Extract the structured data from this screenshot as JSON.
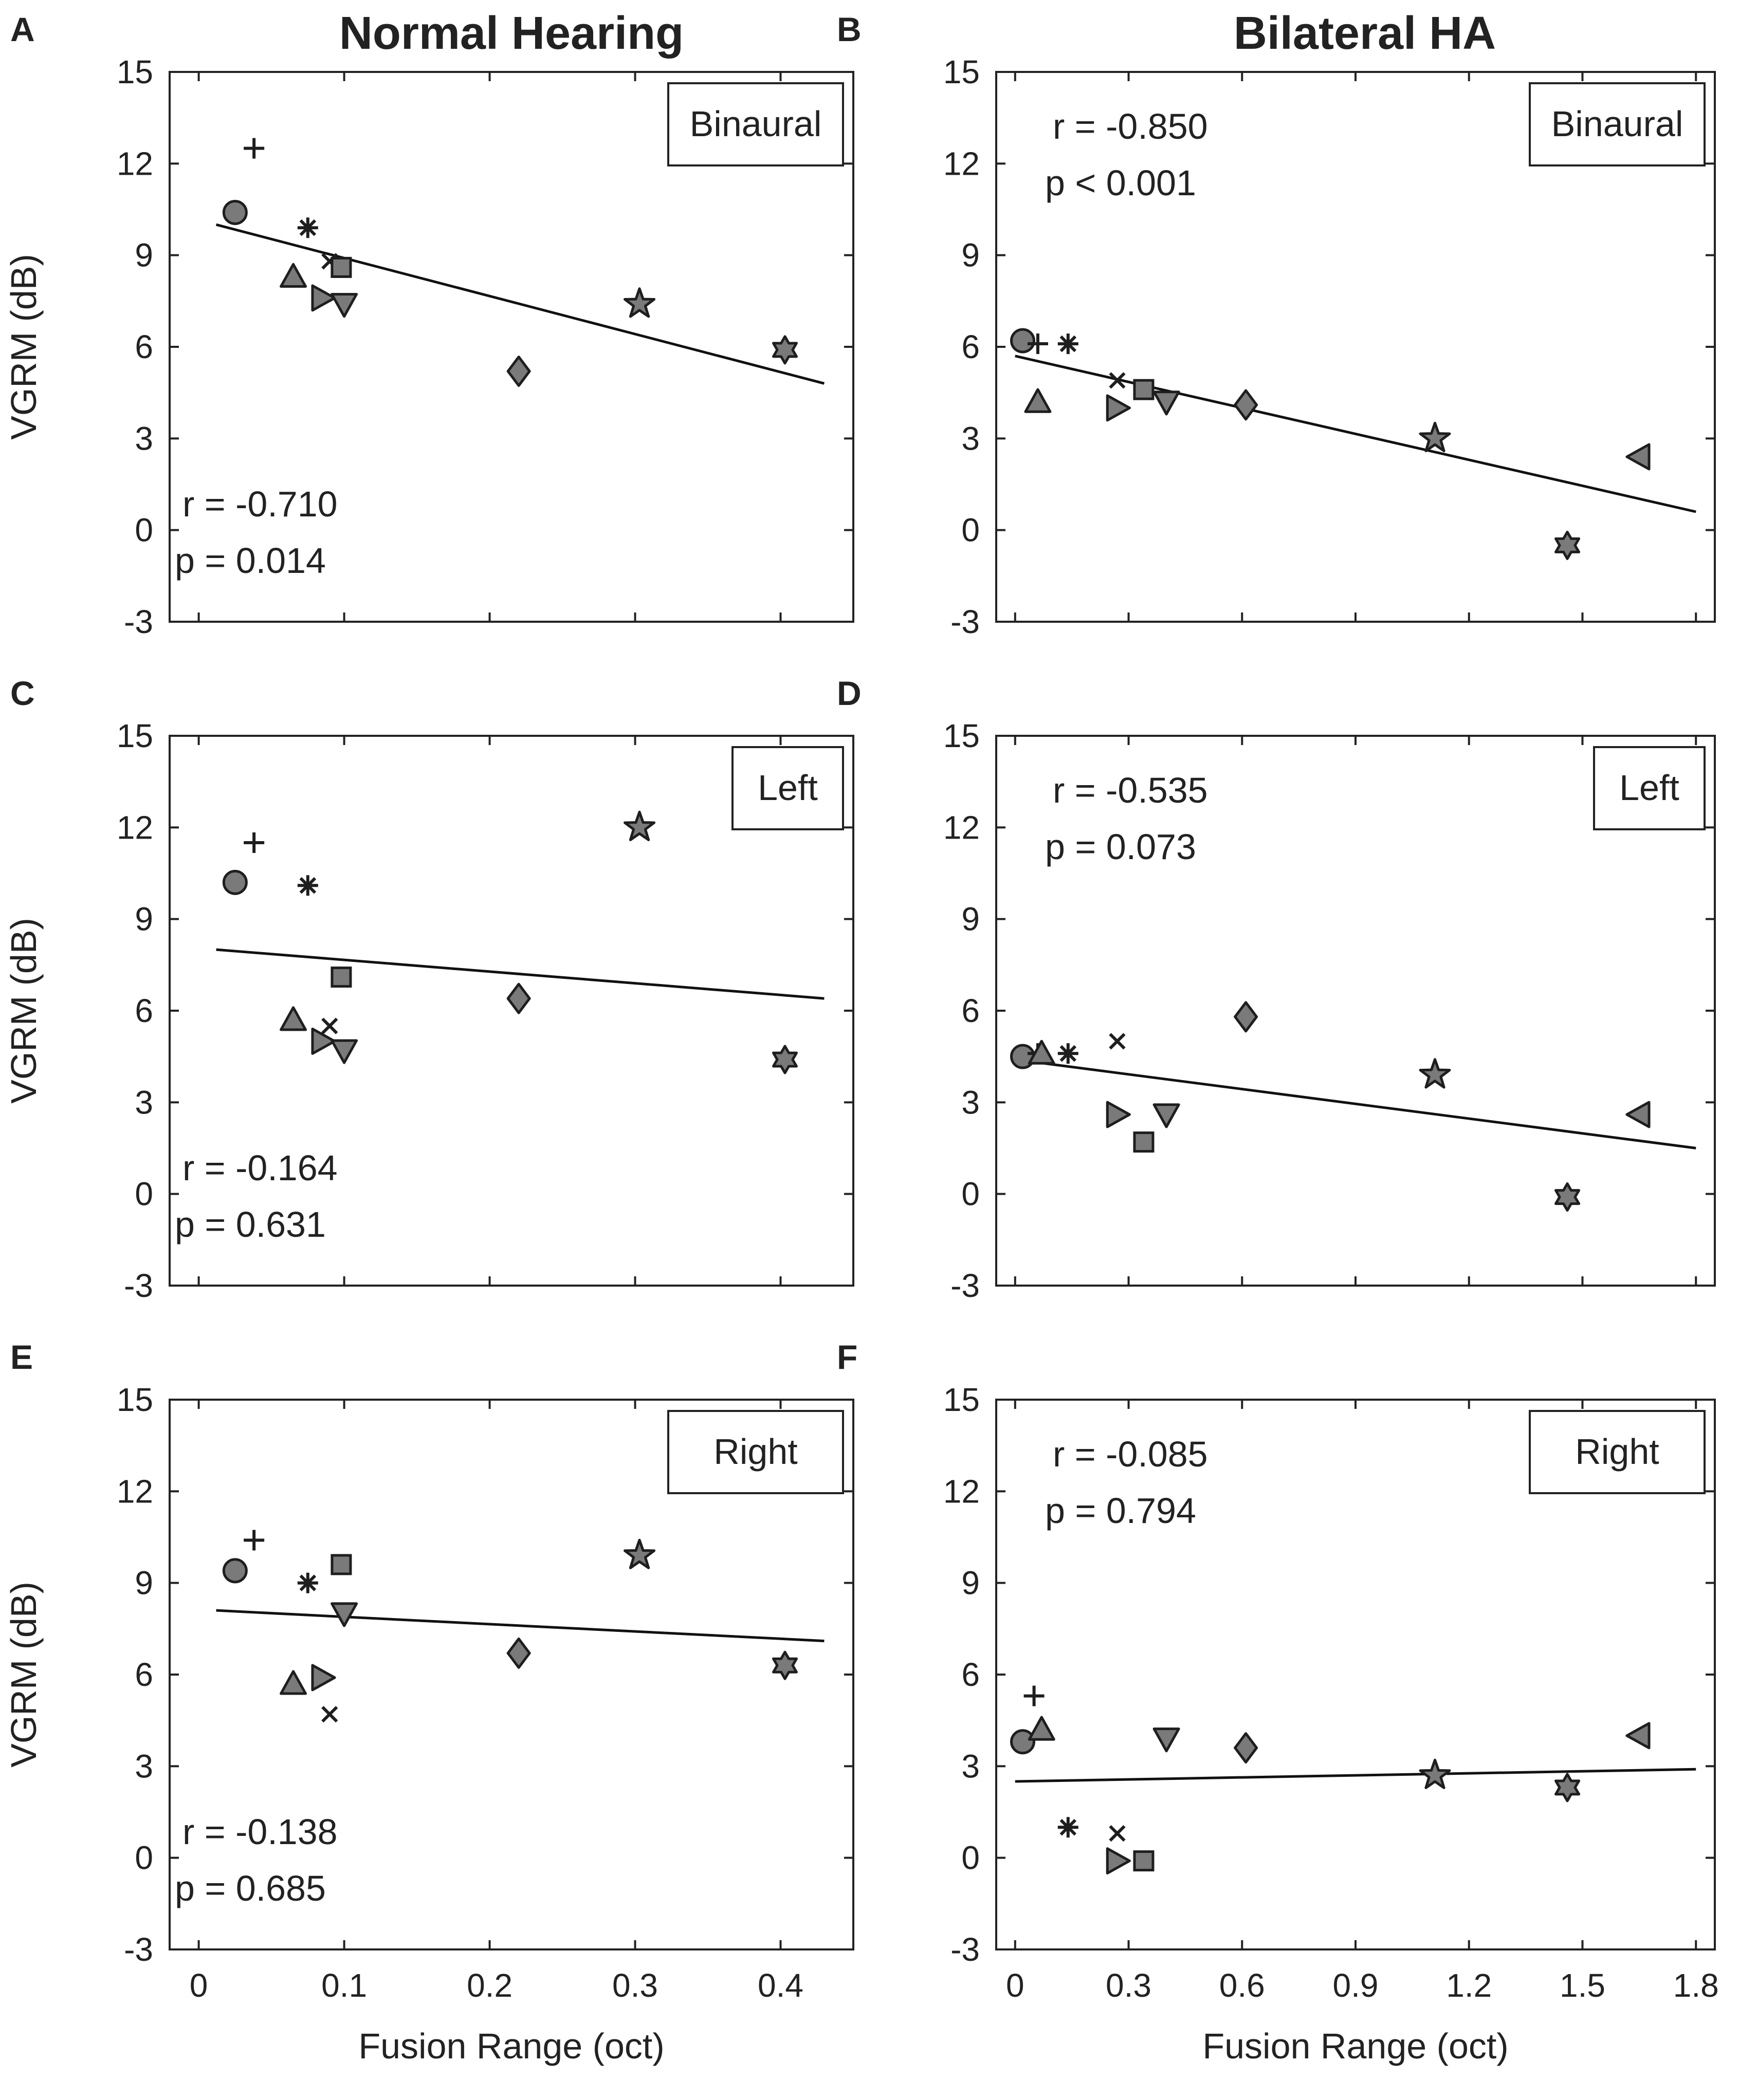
{
  "columns": [
    "Normal Hearing",
    "Bilateral HA"
  ],
  "ylabel": "VGRM (dB)",
  "xlabel": "Fusion Range (oct)",
  "colors": {
    "marker_fill": "#7a7a7a",
    "marker_stroke": "#1e1e1e",
    "line": "#111111",
    "text": "#222222"
  },
  "chart_data": [
    {
      "type": "scatter",
      "panel": "A",
      "group": "Normal Hearing",
      "condition": "Binaural",
      "xlabel": "Fusion Range (oct)",
      "ylabel": "VGRM (dB)",
      "xlim": [
        -0.02,
        0.45
      ],
      "ylim": [
        -3,
        15
      ],
      "xticks": [
        "0",
        "0.1",
        "0.2",
        "0.3",
        "0.4"
      ],
      "yticks": [
        "15",
        "12",
        "9",
        "6",
        "3",
        "0",
        "-3"
      ],
      "stats": {
        "r": "r = -0.710",
        "p": "p =  0.014"
      },
      "stats_position": "bottom-left",
      "fit": [
        [
          0.012,
          10.0
        ],
        [
          0.43,
          4.8
        ]
      ],
      "points": [
        {
          "marker": "circle",
          "x": 0.025,
          "y": 10.4
        },
        {
          "marker": "plus",
          "x": 0.038,
          "y": 12.5
        },
        {
          "marker": "asterisk",
          "x": 0.075,
          "y": 9.9
        },
        {
          "marker": "triangle-up",
          "x": 0.065,
          "y": 8.3
        },
        {
          "marker": "x",
          "x": 0.09,
          "y": 8.8
        },
        {
          "marker": "square",
          "x": 0.098,
          "y": 8.6
        },
        {
          "marker": "triangle-right",
          "x": 0.085,
          "y": 7.6
        },
        {
          "marker": "triangle-down",
          "x": 0.1,
          "y": 7.4
        },
        {
          "marker": "diamond",
          "x": 0.22,
          "y": 5.2
        },
        {
          "marker": "pentagram",
          "x": 0.303,
          "y": 7.4
        },
        {
          "marker": "hexagram",
          "x": 0.403,
          "y": 5.9
        }
      ]
    },
    {
      "type": "scatter",
      "panel": "B",
      "group": "Bilateral HA",
      "condition": "Binaural",
      "xlabel": "Fusion Range (oct)",
      "ylabel": "VGRM (dB)",
      "xlim": [
        -0.05,
        1.85
      ],
      "ylim": [
        -3,
        15
      ],
      "xticks": [
        "0",
        "0.3",
        "0.6",
        "0.9",
        "1.2",
        "1.5",
        "1.8"
      ],
      "yticks": [
        "15",
        "12",
        "9",
        "6",
        "3",
        "0",
        "-3"
      ],
      "stats": {
        "r": "r = -0.850",
        "p": "p <  0.001"
      },
      "stats_position": "top-left",
      "fit": [
        [
          0.0,
          5.7
        ],
        [
          1.8,
          0.6
        ]
      ],
      "points": [
        {
          "marker": "circle",
          "x": 0.02,
          "y": 6.2
        },
        {
          "marker": "plus",
          "x": 0.06,
          "y": 6.1
        },
        {
          "marker": "asterisk",
          "x": 0.14,
          "y": 6.1
        },
        {
          "marker": "triangle-up",
          "x": 0.06,
          "y": 4.2
        },
        {
          "marker": "x",
          "x": 0.27,
          "y": 4.9
        },
        {
          "marker": "square",
          "x": 0.34,
          "y": 4.6
        },
        {
          "marker": "triangle-right",
          "x": 0.27,
          "y": 4.0
        },
        {
          "marker": "triangle-down",
          "x": 0.4,
          "y": 4.2
        },
        {
          "marker": "diamond",
          "x": 0.61,
          "y": 4.1
        },
        {
          "marker": "pentagram",
          "x": 1.11,
          "y": 3.0
        },
        {
          "marker": "hexagram",
          "x": 1.46,
          "y": -0.5
        },
        {
          "marker": "triangle-left",
          "x": 1.65,
          "y": 2.4
        }
      ]
    },
    {
      "type": "scatter",
      "panel": "C",
      "group": "Normal Hearing",
      "condition": "Left",
      "xlabel": "Fusion Range (oct)",
      "ylabel": "VGRM (dB)",
      "xlim": [
        -0.02,
        0.45
      ],
      "ylim": [
        -3,
        15
      ],
      "xticks": [
        "0",
        "0.1",
        "0.2",
        "0.3",
        "0.4"
      ],
      "yticks": [
        "15",
        "12",
        "9",
        "6",
        "3",
        "0",
        "-3"
      ],
      "stats": {
        "r": "r = -0.164",
        "p": "p =  0.631"
      },
      "stats_position": "bottom-left",
      "fit": [
        [
          0.012,
          8.0
        ],
        [
          0.43,
          6.4
        ]
      ],
      "points": [
        {
          "marker": "circle",
          "x": 0.025,
          "y": 10.2
        },
        {
          "marker": "plus",
          "x": 0.038,
          "y": 11.5
        },
        {
          "marker": "asterisk",
          "x": 0.075,
          "y": 10.1
        },
        {
          "marker": "triangle-up",
          "x": 0.065,
          "y": 5.7
        },
        {
          "marker": "x",
          "x": 0.09,
          "y": 5.5
        },
        {
          "marker": "square",
          "x": 0.098,
          "y": 7.1
        },
        {
          "marker": "triangle-right",
          "x": 0.085,
          "y": 5.0
        },
        {
          "marker": "triangle-down",
          "x": 0.1,
          "y": 4.7
        },
        {
          "marker": "diamond",
          "x": 0.22,
          "y": 6.4
        },
        {
          "marker": "pentagram",
          "x": 0.303,
          "y": 12.0
        },
        {
          "marker": "hexagram",
          "x": 0.403,
          "y": 4.4
        }
      ]
    },
    {
      "type": "scatter",
      "panel": "D",
      "group": "Bilateral HA",
      "condition": "Left",
      "xlabel": "Fusion Range (oct)",
      "ylabel": "VGRM (dB)",
      "xlim": [
        -0.05,
        1.85
      ],
      "ylim": [
        -3,
        15
      ],
      "xticks": [
        "0",
        "0.3",
        "0.6",
        "0.9",
        "1.2",
        "1.5",
        "1.8"
      ],
      "yticks": [
        "15",
        "12",
        "9",
        "6",
        "3",
        "0",
        "-3"
      ],
      "stats": {
        "r": "r = -0.535",
        "p": "p =  0.073"
      },
      "stats_position": "top-left",
      "fit": [
        [
          0.0,
          4.4
        ],
        [
          1.8,
          1.5
        ]
      ],
      "points": [
        {
          "marker": "circle",
          "x": 0.02,
          "y": 4.5
        },
        {
          "marker": "plus",
          "x": 0.06,
          "y": 4.6
        },
        {
          "marker": "asterisk",
          "x": 0.14,
          "y": 4.6
        },
        {
          "marker": "triangle-up",
          "x": 0.07,
          "y": 4.6
        },
        {
          "marker": "x",
          "x": 0.27,
          "y": 5.0
        },
        {
          "marker": "square",
          "x": 0.34,
          "y": 1.7
        },
        {
          "marker": "triangle-right",
          "x": 0.27,
          "y": 2.6
        },
        {
          "marker": "triangle-down",
          "x": 0.4,
          "y": 2.6
        },
        {
          "marker": "diamond",
          "x": 0.61,
          "y": 5.8
        },
        {
          "marker": "pentagram",
          "x": 1.11,
          "y": 3.9
        },
        {
          "marker": "hexagram",
          "x": 1.46,
          "y": -0.1
        },
        {
          "marker": "triangle-left",
          "x": 1.65,
          "y": 2.6
        }
      ]
    },
    {
      "type": "scatter",
      "panel": "E",
      "group": "Normal Hearing",
      "condition": "Right",
      "xlabel": "Fusion Range (oct)",
      "ylabel": "VGRM (dB)",
      "xlim": [
        -0.02,
        0.45
      ],
      "ylim": [
        -3,
        15
      ],
      "xticks": [
        "0",
        "0.1",
        "0.2",
        "0.3",
        "0.4"
      ],
      "yticks": [
        "15",
        "12",
        "9",
        "6",
        "3",
        "0",
        "-3"
      ],
      "stats": {
        "r": "r = -0.138",
        "p": "p =  0.685"
      },
      "stats_position": "bottom-left",
      "fit": [
        [
          0.012,
          8.1
        ],
        [
          0.43,
          7.1
        ]
      ],
      "points": [
        {
          "marker": "circle",
          "x": 0.025,
          "y": 9.4
        },
        {
          "marker": "plus",
          "x": 0.038,
          "y": 10.4
        },
        {
          "marker": "asterisk",
          "x": 0.075,
          "y": 9.0
        },
        {
          "marker": "triangle-up",
          "x": 0.065,
          "y": 5.7
        },
        {
          "marker": "x",
          "x": 0.09,
          "y": 4.7
        },
        {
          "marker": "square",
          "x": 0.098,
          "y": 9.6
        },
        {
          "marker": "triangle-right",
          "x": 0.085,
          "y": 5.9
        },
        {
          "marker": "triangle-down",
          "x": 0.1,
          "y": 8.0
        },
        {
          "marker": "diamond",
          "x": 0.22,
          "y": 6.7
        },
        {
          "marker": "pentagram",
          "x": 0.303,
          "y": 9.9
        },
        {
          "marker": "hexagram",
          "x": 0.403,
          "y": 6.3
        }
      ]
    },
    {
      "type": "scatter",
      "panel": "F",
      "group": "Bilateral HA",
      "condition": "Right",
      "xlabel": "Fusion Range (oct)",
      "ylabel": "VGRM (dB)",
      "xlim": [
        -0.05,
        1.85
      ],
      "ylim": [
        -3,
        15
      ],
      "xticks": [
        "0",
        "0.3",
        "0.6",
        "0.9",
        "1.2",
        "1.5",
        "1.8"
      ],
      "yticks": [
        "15",
        "12",
        "9",
        "6",
        "3",
        "0",
        "-3"
      ],
      "stats": {
        "r": "r = -0.085",
        "p": "p =  0.794"
      },
      "stats_position": "top-left",
      "fit": [
        [
          0.0,
          2.5
        ],
        [
          1.8,
          2.9
        ]
      ],
      "points": [
        {
          "marker": "circle",
          "x": 0.02,
          "y": 3.8
        },
        {
          "marker": "plus",
          "x": 0.05,
          "y": 5.3
        },
        {
          "marker": "asterisk",
          "x": 0.14,
          "y": 1.0
        },
        {
          "marker": "triangle-up",
          "x": 0.07,
          "y": 4.2
        },
        {
          "marker": "x",
          "x": 0.27,
          "y": 0.8
        },
        {
          "marker": "square",
          "x": 0.34,
          "y": -0.1
        },
        {
          "marker": "triangle-right",
          "x": 0.27,
          "y": -0.1
        },
        {
          "marker": "triangle-down",
          "x": 0.4,
          "y": 3.9
        },
        {
          "marker": "diamond",
          "x": 0.61,
          "y": 3.6
        },
        {
          "marker": "pentagram",
          "x": 1.11,
          "y": 2.7
        },
        {
          "marker": "hexagram",
          "x": 1.46,
          "y": 2.3
        },
        {
          "marker": "triangle-left",
          "x": 1.65,
          "y": 4.0
        }
      ]
    }
  ]
}
